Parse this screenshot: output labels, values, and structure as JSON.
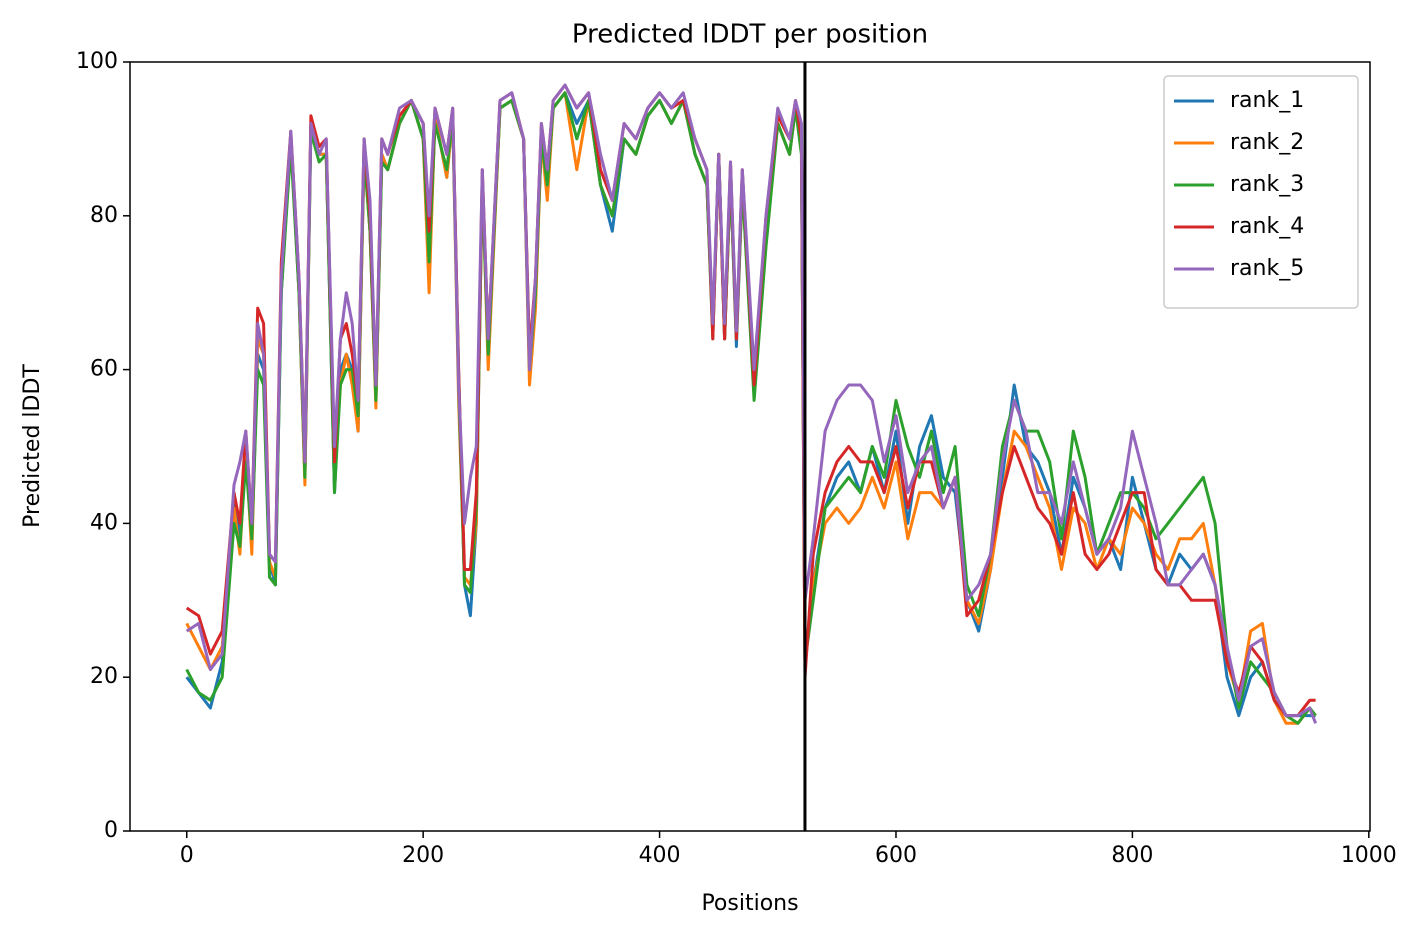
{
  "chart_data": {
    "type": "line",
    "title": "Predicted lDDT per position",
    "xlabel": "Positions",
    "ylabel": "Predicted lDDT",
    "x": [
      0,
      10,
      20,
      30,
      40,
      45,
      50,
      55,
      60,
      65,
      70,
      75,
      80,
      88,
      95,
      100,
      105,
      112,
      118,
      125,
      130,
      135,
      140,
      145,
      150,
      155,
      160,
      165,
      170,
      180,
      190,
      200,
      205,
      210,
      220,
      225,
      230,
      235,
      240,
      245,
      250,
      255,
      265,
      275,
      285,
      290,
      295,
      300,
      305,
      310,
      320,
      330,
      340,
      350,
      360,
      370,
      380,
      390,
      400,
      410,
      420,
      430,
      440,
      445,
      450,
      455,
      460,
      465,
      470,
      480,
      490,
      500,
      510,
      515,
      520,
      523,
      530,
      540,
      550,
      560,
      570,
      580,
      590,
      600,
      610,
      620,
      630,
      640,
      650,
      660,
      670,
      680,
      690,
      700,
      710,
      720,
      730,
      740,
      750,
      760,
      770,
      780,
      790,
      800,
      810,
      820,
      830,
      840,
      850,
      860,
      870,
      880,
      890,
      900,
      910,
      920,
      930,
      940,
      950,
      955
    ],
    "series": [
      {
        "name": "rank_1",
        "color": "#1f77b4",
        "values": [
          20,
          18,
          16,
          22,
          44,
          38,
          50,
          38,
          62,
          60,
          35,
          32,
          70,
          90,
          70,
          46,
          92,
          88,
          88,
          44,
          60,
          62,
          60,
          52,
          89,
          78,
          56,
          88,
          86,
          92,
          95,
          90,
          72,
          93,
          85,
          93,
          60,
          32,
          28,
          40,
          85,
          62,
          94,
          95,
          90,
          62,
          70,
          90,
          85,
          94,
          96,
          92,
          95,
          84,
          78,
          90,
          88,
          93,
          95,
          92,
          95,
          88,
          84,
          65,
          88,
          64,
          85,
          63,
          84,
          58,
          78,
          92,
          88,
          94,
          90,
          22,
          32,
          42,
          46,
          48,
          44,
          50,
          44,
          52,
          40,
          50,
          54,
          46,
          44,
          30,
          26,
          34,
          46,
          58,
          50,
          48,
          44,
          36,
          46,
          42,
          36,
          38,
          34,
          46,
          40,
          34,
          32,
          36,
          34,
          36,
          32,
          20,
          15,
          20,
          22,
          17,
          15,
          15,
          15,
          15
        ]
      },
      {
        "name": "rank_2",
        "color": "#ff7f0e",
        "values": [
          27,
          24,
          21,
          24,
          42,
          36,
          50,
          36,
          64,
          62,
          35,
          33,
          72,
          90,
          70,
          45,
          92,
          88,
          88,
          46,
          58,
          62,
          58,
          52,
          88,
          78,
          55,
          88,
          86,
          92,
          95,
          90,
          70,
          93,
          85,
          93,
          56,
          33,
          32,
          40,
          85,
          60,
          94,
          95,
          90,
          58,
          68,
          90,
          82,
          94,
          96,
          86,
          95,
          84,
          80,
          90,
          88,
          93,
          95,
          92,
          95,
          88,
          84,
          65,
          88,
          64,
          85,
          64,
          84,
          58,
          78,
          92,
          88,
          94,
          90,
          22,
          32,
          40,
          42,
          40,
          42,
          46,
          42,
          48,
          38,
          44,
          44,
          42,
          46,
          30,
          27,
          34,
          44,
          52,
          50,
          46,
          42,
          34,
          42,
          40,
          34,
          38,
          36,
          42,
          40,
          36,
          34,
          38,
          38,
          40,
          32,
          22,
          17,
          26,
          27,
          17,
          14,
          14,
          16,
          15
        ]
      },
      {
        "name": "rank_3",
        "color": "#2ca02c",
        "values": [
          21,
          18,
          17,
          20,
          40,
          37,
          48,
          38,
          60,
          58,
          33,
          32,
          70,
          89,
          70,
          46,
          91,
          87,
          88,
          44,
          58,
          60,
          60,
          54,
          88,
          78,
          56,
          87,
          86,
          92,
          95,
          90,
          74,
          92,
          86,
          93,
          58,
          32,
          31,
          42,
          84,
          62,
          94,
          95,
          90,
          60,
          70,
          90,
          84,
          94,
          96,
          90,
          95,
          84,
          80,
          90,
          88,
          93,
          95,
          92,
          95,
          88,
          84,
          64,
          88,
          64,
          85,
          64,
          84,
          56,
          76,
          92,
          88,
          94,
          88,
          22,
          30,
          42,
          44,
          46,
          44,
          50,
          46,
          56,
          50,
          46,
          52,
          44,
          50,
          32,
          28,
          36,
          50,
          56,
          52,
          52,
          48,
          38,
          52,
          46,
          36,
          40,
          44,
          44,
          42,
          38,
          40,
          42,
          44,
          46,
          40,
          24,
          16,
          22,
          20,
          18,
          15,
          14,
          16,
          15
        ]
      },
      {
        "name": "rank_4",
        "color": "#d62728",
        "values": [
          29,
          28,
          23,
          26,
          44,
          40,
          52,
          40,
          68,
          66,
          36,
          35,
          74,
          91,
          72,
          48,
          93,
          89,
          90,
          48,
          64,
          66,
          62,
          56,
          90,
          80,
          58,
          90,
          88,
          93,
          95,
          92,
          78,
          94,
          88,
          94,
          60,
          34,
          34,
          44,
          86,
          64,
          95,
          96,
          90,
          62,
          72,
          92,
          86,
          95,
          97,
          94,
          96,
          86,
          82,
          92,
          90,
          94,
          96,
          94,
          95,
          90,
          86,
          64,
          88,
          64,
          87,
          64,
          86,
          58,
          80,
          93,
          90,
          95,
          90,
          20,
          36,
          44,
          48,
          50,
          48,
          48,
          44,
          50,
          42,
          48,
          48,
          42,
          46,
          28,
          30,
          36,
          44,
          50,
          46,
          42,
          40,
          36,
          44,
          36,
          34,
          36,
          40,
          44,
          44,
          34,
          32,
          32,
          30,
          30,
          30,
          22,
          18,
          24,
          22,
          17,
          15,
          15,
          17,
          17
        ]
      },
      {
        "name": "rank_5",
        "color": "#9467bd",
        "values": [
          26,
          27,
          21,
          23,
          45,
          48,
          52,
          40,
          66,
          62,
          36,
          35,
          72,
          91,
          72,
          48,
          92,
          88,
          90,
          50,
          64,
          70,
          66,
          56,
          90,
          82,
          58,
          90,
          88,
          94,
          95,
          92,
          80,
          94,
          88,
          94,
          58,
          40,
          46,
          50,
          86,
          64,
          95,
          96,
          90,
          60,
          72,
          92,
          86,
          95,
          97,
          94,
          96,
          88,
          82,
          92,
          90,
          94,
          96,
          94,
          96,
          90,
          86,
          66,
          88,
          66,
          87,
          65,
          86,
          60,
          80,
          94,
          90,
          95,
          92,
          30,
          38,
          52,
          56,
          58,
          58,
          56,
          48,
          54,
          44,
          48,
          50,
          42,
          46,
          30,
          32,
          36,
          48,
          56,
          52,
          44,
          44,
          40,
          48,
          42,
          36,
          38,
          42,
          52,
          46,
          40,
          32,
          32,
          34,
          36,
          32,
          24,
          17,
          24,
          25,
          18,
          15,
          15,
          16,
          14
        ]
      }
    ],
    "xlim": [
      -48,
      1001
    ],
    "ylim": [
      0,
      100
    ],
    "xticks": [
      0,
      200,
      400,
      600,
      800,
      1000
    ],
    "yticks": [
      0,
      20,
      40,
      60,
      80,
      100
    ],
    "vlines": [
      523
    ],
    "vline_color": "#000000",
    "legend": "upper right"
  }
}
